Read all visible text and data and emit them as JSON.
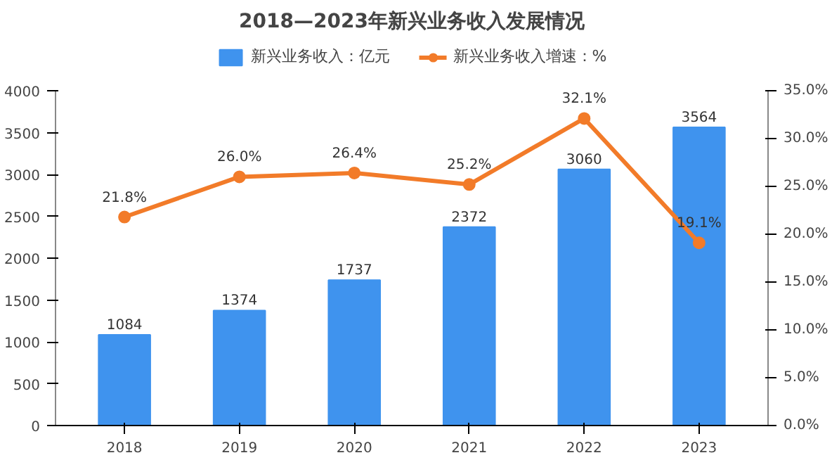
{
  "chart_data": {
    "type": "bar",
    "title": "2018—2023年新兴业务收入发展情况",
    "categories": [
      "2018",
      "2019",
      "2020",
      "2021",
      "2022",
      "2023"
    ],
    "series": [
      {
        "name": "新兴业务收入：亿元",
        "color": "#3f93ee",
        "values": [
          1084,
          1374,
          1737,
          2372,
          3060,
          3564
        ],
        "value_labels": [
          "1084",
          "1374",
          "1737",
          "2372",
          "3060",
          "3564"
        ]
      },
      {
        "name": "新兴业务收入增速：%",
        "type": "line",
        "axis": "y2",
        "color": "#f27b29",
        "values": [
          21.8,
          26.0,
          26.4,
          25.2,
          32.1,
          19.1
        ],
        "value_labels": [
          "21.8%",
          "26.0%",
          "26.4%",
          "25.2%",
          "32.1%",
          "19.1%"
        ]
      }
    ],
    "ylim": [
      0,
      4000
    ],
    "yticks": [
      0,
      500,
      1000,
      1500,
      2000,
      2500,
      3000,
      3500,
      4000
    ],
    "y2lim": [
      0,
      35
    ],
    "y2ticks": [
      {
        "value": 0,
        "label": "0.0%"
      },
      {
        "value": 5,
        "label": "5.0%"
      },
      {
        "value": 10,
        "label": "10.0%"
      },
      {
        "value": 15,
        "label": "15.0%"
      },
      {
        "value": 20,
        "label": "20.0%"
      },
      {
        "value": 25,
        "label": "25.0%"
      },
      {
        "value": 30,
        "label": "30.0%"
      },
      {
        "value": 35,
        "label": "35.0%"
      }
    ],
    "marker": "circle",
    "line_style": "solid",
    "grid": false,
    "legend": "top"
  }
}
